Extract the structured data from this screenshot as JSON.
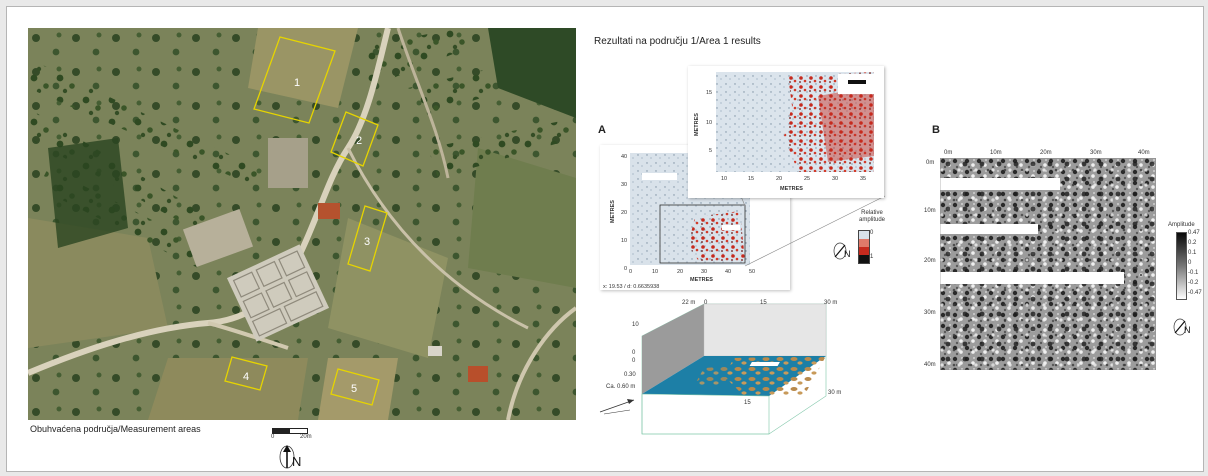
{
  "left_figure": {
    "area_labels": [
      "1",
      "2",
      "3",
      "4",
      "5"
    ],
    "caption": "Obuhvaćena područja/Measurement areas",
    "scale_ticks": [
      "0",
      "20m"
    ],
    "north_label": "N"
  },
  "right_figure": {
    "title": "Rezultati na području 1/Area 1 results",
    "panel_a": {
      "label": "A",
      "axis_label": "METRES",
      "main_plot": {
        "x_ticks": [
          "0",
          "10",
          "20",
          "30",
          "40",
          "50"
        ],
        "y_ticks": [
          "0",
          "10",
          "20",
          "30",
          "40"
        ],
        "xlabel": "METRES",
        "ylabel": "METRES",
        "coord_readout": "x: 19.53 / d: 0.6635938"
      },
      "inset_plot": {
        "x_ticks": [
          "10",
          "15",
          "20",
          "25",
          "30",
          "35"
        ],
        "y_ticks": [
          "5",
          "10",
          "15"
        ],
        "xlabel": "METRES",
        "ylabel": "METRES"
      },
      "legend_title": "Relative amplitude",
      "legend_ticks": [
        "0",
        "1"
      ],
      "north_label": "N"
    },
    "panel_3d": {
      "top_labels": [
        "22 m",
        "0",
        "15",
        "30 m"
      ],
      "side_labels": [
        "10",
        "0",
        "0",
        "0.30",
        "Ca. 0.60 m"
      ],
      "bottom_labels": [
        "15",
        "30 m"
      ]
    },
    "panel_b": {
      "label": "B",
      "top_ticks": [
        "0m",
        "10m",
        "20m",
        "30m",
        "40m"
      ],
      "left_ticks": [
        "0m",
        "10m",
        "20m",
        "30m",
        "40m"
      ],
      "legend_title": "Amplitude",
      "legend_ticks": [
        "0.47",
        "0.2",
        "0.1",
        "0",
        "-0.1",
        "-0.2",
        "-0.47"
      ],
      "north_label": "N"
    }
  },
  "colors": {
    "area_outline": "#e6d400",
    "anomaly_red": "#c62a1e",
    "surface_blue": "#1d7fa6",
    "surface_tan": "#b98a4c"
  }
}
